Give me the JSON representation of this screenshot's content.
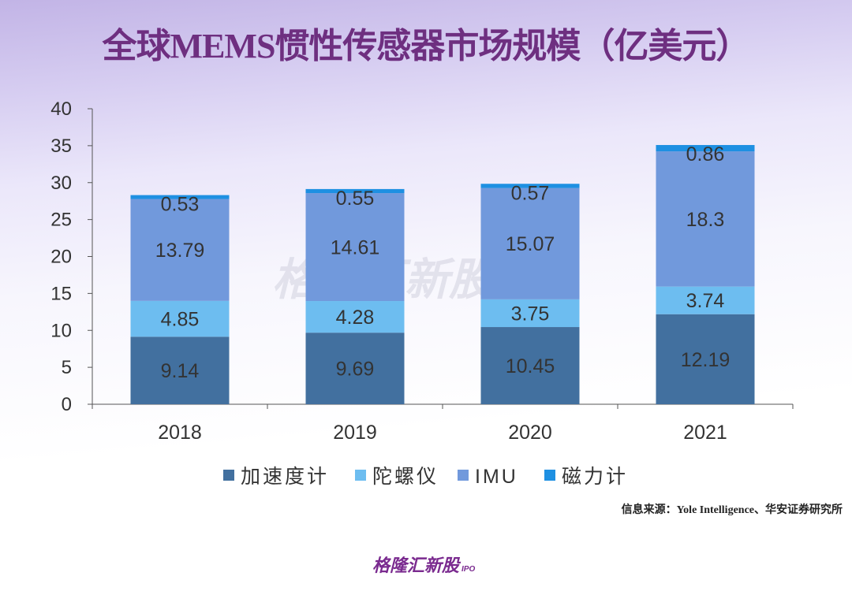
{
  "chart_data": {
    "type": "bar",
    "stacked": true,
    "title": "全球MEMS惯性传感器市场规模（亿美元）",
    "categories": [
      "2018",
      "2019",
      "2020",
      "2021"
    ],
    "series": [
      {
        "name": "加速度计",
        "color": "#42709f",
        "values": [
          9.14,
          9.69,
          10.45,
          12.19
        ]
      },
      {
        "name": "陀螺仪",
        "color": "#6dbdf0",
        "values": [
          4.85,
          4.28,
          3.75,
          3.74
        ]
      },
      {
        "name": "IMU",
        "color": "#7199dc",
        "values": [
          13.79,
          14.61,
          15.07,
          18.3
        ]
      },
      {
        "name": "磁力计",
        "color": "#1e90e2",
        "values": [
          0.53,
          0.55,
          0.57,
          0.86
        ]
      }
    ],
    "ylim": [
      0,
      40
    ],
    "yticks": [
      0,
      5,
      10,
      15,
      20,
      25,
      30,
      35,
      40
    ],
    "grid": false,
    "legend": "bottom",
    "xlabel": "",
    "ylabel": ""
  },
  "source": "信息来源：Yole Intelligence、华安证券研究所",
  "watermark": "格隆汇新股",
  "logo": {
    "text": "格隆汇新股",
    "sub": "IPO"
  }
}
